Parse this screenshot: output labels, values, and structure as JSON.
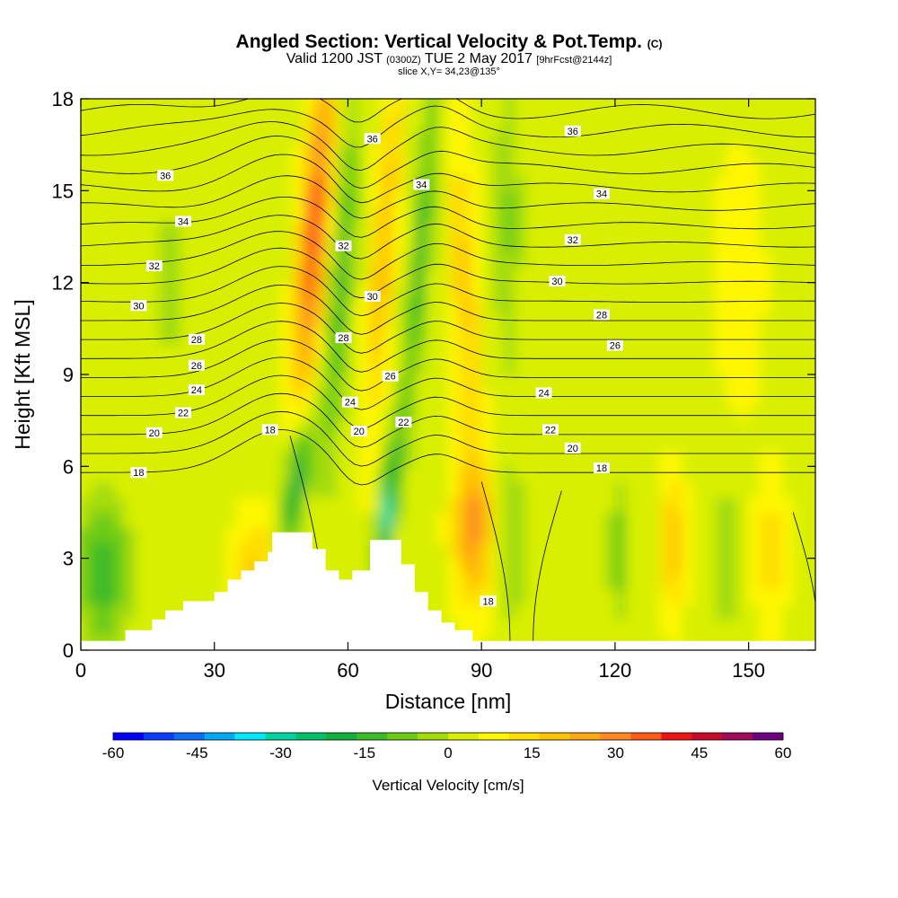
{
  "title": {
    "main": "Angled Section: Vertical Velocity & Pot.Temp.",
    "tag": "(C)",
    "valid_prefix": "Valid 1200 JST",
    "valid_utc": "(0300Z)",
    "valid_date": "TUE 2 May 2017",
    "forecast": "[9hrFcst@2144z]",
    "slice": "slice X,Y= 34,23@135°"
  },
  "colors": {
    "palette": [
      "#0000ff",
      "#0a3cff",
      "#0f6cf5",
      "#00aaf7",
      "#00eaff",
      "#00d2a0",
      "#00c06a",
      "#14af3c",
      "#3cbb28",
      "#6ccb14",
      "#a4dc08",
      "#d8f000",
      "#fff700",
      "#ffde00",
      "#ffc400",
      "#ffaa10",
      "#ff8820",
      "#ff5a18",
      "#ee1414",
      "#c80a2a",
      "#a00a5a",
      "#6c0080"
    ]
  },
  "chart_data": {
    "type": "heatmap",
    "xlabel": "Distance [nm]",
    "ylabel": "Height [Kft MSL]",
    "xlim": [
      0,
      165
    ],
    "ylim": [
      0,
      18
    ],
    "xticks": [
      0,
      30,
      60,
      90,
      120,
      150
    ],
    "yticks": [
      0,
      3,
      6,
      9,
      12,
      15,
      18
    ],
    "colorbar": {
      "title": "Vertical Velocity [cm/s]",
      "min": -60,
      "max": 60,
      "tick_values": [
        -60,
        -45,
        -30,
        -15,
        0,
        15,
        30,
        45,
        60
      ]
    },
    "terrain": [
      [
        0,
        0.3
      ],
      [
        10,
        0.3
      ],
      [
        10,
        0.65
      ],
      [
        16,
        0.65
      ],
      [
        16,
        1
      ],
      [
        19,
        1
      ],
      [
        19,
        1.3
      ],
      [
        23,
        1.3
      ],
      [
        23,
        1.6
      ],
      [
        30,
        1.6
      ],
      [
        30,
        1.9
      ],
      [
        33,
        1.9
      ],
      [
        33,
        2.3
      ],
      [
        36,
        2.3
      ],
      [
        36,
        2.6
      ],
      [
        39,
        2.6
      ],
      [
        39,
        2.9
      ],
      [
        42,
        2.9
      ],
      [
        42,
        3.2
      ],
      [
        43,
        3.2
      ],
      [
        43,
        3.85
      ],
      [
        52,
        3.85
      ],
      [
        52,
        3.3
      ],
      [
        55,
        3.3
      ],
      [
        55,
        2.6
      ],
      [
        58,
        2.6
      ],
      [
        58,
        2.3
      ],
      [
        61,
        2.3
      ],
      [
        61,
        2.6
      ],
      [
        65,
        2.6
      ],
      [
        65,
        3.6
      ],
      [
        72,
        3.6
      ],
      [
        72,
        2.8
      ],
      [
        75,
        2.8
      ],
      [
        75,
        1.9
      ],
      [
        78,
        1.9
      ],
      [
        78,
        1.3
      ],
      [
        81,
        1.3
      ],
      [
        81,
        0.9
      ],
      [
        84,
        0.9
      ],
      [
        84,
        0.65
      ],
      [
        88,
        0.65
      ],
      [
        88,
        0.3
      ],
      [
        165,
        0.3
      ]
    ],
    "potential_temperature_labels": [
      {
        "text": "36",
        "x": 19,
        "y": 15.5
      },
      {
        "text": "34",
        "x": 23,
        "y": 14.0
      },
      {
        "text": "32",
        "x": 16.5,
        "y": 12.55
      },
      {
        "text": "30",
        "x": 13,
        "y": 11.25
      },
      {
        "text": "28",
        "x": 26,
        "y": 10.15
      },
      {
        "text": "26",
        "x": 26,
        "y": 9.3
      },
      {
        "text": "24",
        "x": 26,
        "y": 8.5
      },
      {
        "text": "22",
        "x": 23,
        "y": 7.75
      },
      {
        "text": "20",
        "x": 16.5,
        "y": 7.1
      },
      {
        "text": "18",
        "x": 13,
        "y": 5.8
      },
      {
        "text": "18",
        "x": 42.5,
        "y": 7.2
      },
      {
        "text": "36",
        "x": 65.5,
        "y": 16.7
      },
      {
        "text": "34",
        "x": 76.5,
        "y": 15.2
      },
      {
        "text": "32",
        "x": 59,
        "y": 13.2
      },
      {
        "text": "30",
        "x": 65.5,
        "y": 11.55
      },
      {
        "text": "28",
        "x": 59,
        "y": 10.2
      },
      {
        "text": "26",
        "x": 69.5,
        "y": 8.95
      },
      {
        "text": "24",
        "x": 60.5,
        "y": 8.1
      },
      {
        "text": "22",
        "x": 72.5,
        "y": 7.45
      },
      {
        "text": "20",
        "x": 62.5,
        "y": 7.15
      },
      {
        "text": "18",
        "x": 91.5,
        "y": 1.6
      },
      {
        "text": "36",
        "x": 110.5,
        "y": 16.95
      },
      {
        "text": "34",
        "x": 117,
        "y": 14.9
      },
      {
        "text": "32",
        "x": 110.5,
        "y": 13.4
      },
      {
        "text": "30",
        "x": 107,
        "y": 12.05
      },
      {
        "text": "28",
        "x": 117,
        "y": 10.95
      },
      {
        "text": "26",
        "x": 120,
        "y": 9.95
      },
      {
        "text": "24",
        "x": 104,
        "y": 8.4
      },
      {
        "text": "22",
        "x": 105.5,
        "y": 7.2
      },
      {
        "text": "20",
        "x": 110.5,
        "y": 6.6
      },
      {
        "text": "18",
        "x": 117,
        "y": 5.95
      }
    ]
  }
}
